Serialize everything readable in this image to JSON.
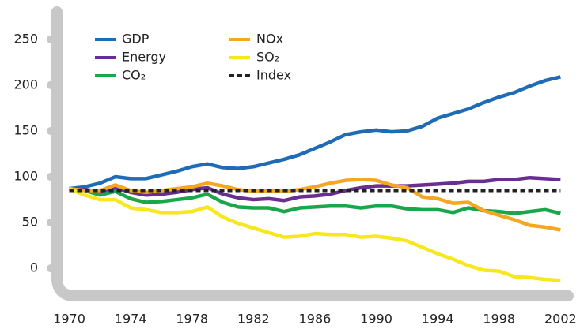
{
  "chart_data": {
    "type": "line",
    "x": [
      1970,
      1971,
      1972,
      1973,
      1974,
      1975,
      1976,
      1977,
      1978,
      1979,
      1980,
      1981,
      1982,
      1983,
      1984,
      1985,
      1986,
      1987,
      1988,
      1989,
      1990,
      1991,
      1992,
      1993,
      1994,
      1995,
      1996,
      1997,
      1998,
      1999,
      2000,
      2001,
      2002
    ],
    "series": [
      {
        "name": "GDP",
        "color": "#1f6bb5",
        "values": [
          87,
          89,
          93,
          100,
          98,
          98,
          102,
          106,
          111,
          114,
          110,
          109,
          111,
          115,
          119,
          124,
          131,
          138,
          146,
          149,
          151,
          149,
          150,
          155,
          164,
          169,
          174,
          181,
          187,
          192,
          199,
          205,
          209
        ]
      },
      {
        "name": "Energy",
        "color": "#6a2d91",
        "values": [
          87,
          86,
          84,
          88,
          83,
          80,
          81,
          83,
          86,
          88,
          81,
          77,
          75,
          76,
          74,
          78,
          79,
          81,
          85,
          88,
          90,
          90,
          90,
          91,
          92,
          93,
          95,
          95,
          97,
          97,
          99,
          98,
          97
        ]
      },
      {
        "name": "CO₂",
        "color": "#1aa64a",
        "values": [
          87,
          85,
          80,
          84,
          76,
          72,
          73,
          75,
          77,
          81,
          72,
          67,
          66,
          66,
          62,
          66,
          67,
          68,
          68,
          66,
          68,
          68,
          65,
          64,
          64,
          61,
          66,
          63,
          62,
          60,
          62,
          64,
          60
        ]
      },
      {
        "name": "NOx",
        "color": "#f5a623",
        "values": [
          87,
          85,
          85,
          91,
          85,
          83,
          85,
          87,
          89,
          93,
          90,
          86,
          84,
          85,
          84,
          86,
          89,
          93,
          96,
          97,
          96,
          91,
          88,
          78,
          76,
          71,
          72,
          63,
          58,
          53,
          47,
          45,
          42
        ]
      },
      {
        "name": "SO₂",
        "color": "#f6e81c",
        "values": [
          87,
          80,
          75,
          75,
          66,
          64,
          61,
          61,
          62,
          67,
          56,
          49,
          44,
          39,
          34,
          35,
          38,
          37,
          37,
          34,
          35,
          33,
          30,
          23,
          16,
          10,
          3,
          -2,
          -3,
          -9,
          -10,
          -12,
          -13
        ]
      },
      {
        "name": "Index",
        "color": "#222222",
        "dashed": true,
        "values": [
          85,
          85,
          85,
          85,
          85,
          85,
          85,
          85,
          85,
          85,
          85,
          85,
          85,
          85,
          85,
          85,
          85,
          85,
          85,
          85,
          85,
          85,
          85,
          85,
          85,
          85,
          85,
          85,
          85,
          85,
          85,
          85,
          85
        ]
      }
    ],
    "xlim": [
      1969.2,
      2002.6
    ],
    "xticks": [
      1970,
      1974,
      1978,
      1982,
      1986,
      1990,
      1994,
      1998,
      2002
    ],
    "ylim": [
      -30,
      280
    ],
    "yticks": [
      0,
      50,
      100,
      150,
      200,
      250
    ]
  }
}
